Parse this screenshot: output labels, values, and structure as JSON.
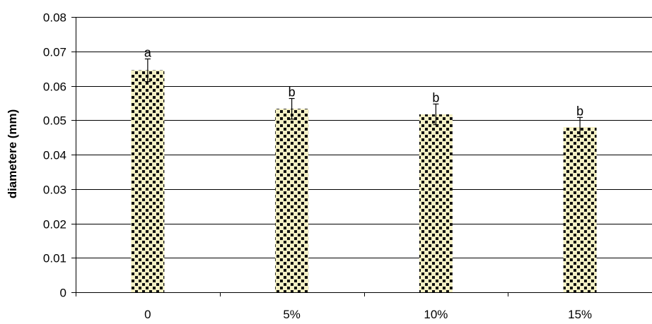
{
  "chart_data": {
    "type": "bar",
    "title": "",
    "xlabel": "",
    "ylabel": "diametere (mm)",
    "categories": [
      "0",
      "5%",
      "10%",
      "15%"
    ],
    "values": [
      0.0645,
      0.0533,
      0.0517,
      0.048
    ],
    "error": [
      0.0033,
      0.003,
      0.003,
      0.0028
    ],
    "significance_labels": [
      "a",
      "b",
      "b",
      "b"
    ],
    "ylim": [
      0,
      0.08
    ],
    "y_ticks": [
      "0",
      "0.01",
      "0.02",
      "0.03",
      "0.04",
      "0.05",
      "0.06",
      "0.07",
      "0.08"
    ],
    "grid": true,
    "legend": "none",
    "colors": {
      "bar_fill": "#f4f0c4",
      "bar_pattern": "#111111",
      "gridline": "#000000",
      "axis": "#000000"
    }
  }
}
